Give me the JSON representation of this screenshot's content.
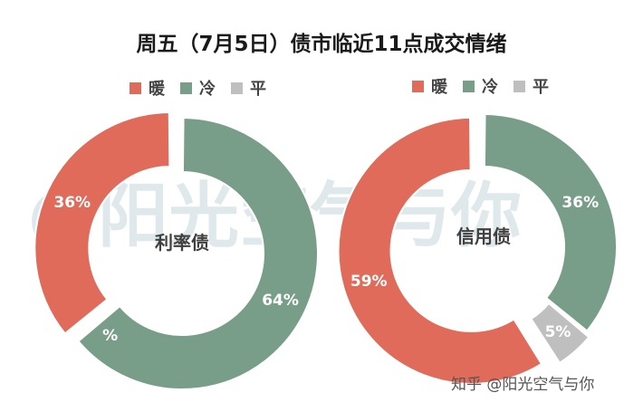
{
  "title": "周五（7月5日）债市临近11点成交情绪",
  "legend": [
    {
      "label": "暖",
      "color": "#e06b5a"
    },
    {
      "label": "冷",
      "color": "#789e89"
    },
    {
      "label": "平",
      "color": "#bfbfbf"
    }
  ],
  "watermark": {
    "big": "@阳光空气与你",
    "small": "知乎 @阳光空气与你"
  },
  "chart_data": [
    {
      "type": "pie",
      "center_label": "利率债",
      "slices": [
        {
          "label": "暖",
          "value": 36,
          "display": "36%",
          "color": "#e06b5a"
        },
        {
          "label": "冷",
          "value": 64,
          "display": "64%",
          "color": "#789e89"
        },
        {
          "label": "平",
          "value": 0,
          "display": "%",
          "color": "#bfbfbf"
        }
      ]
    },
    {
      "type": "pie",
      "center_label": "信用债",
      "slices": [
        {
          "label": "暖",
          "value": 59,
          "display": "59%",
          "color": "#e06b5a"
        },
        {
          "label": "冷",
          "value": 36,
          "display": "36%",
          "color": "#789e89"
        },
        {
          "label": "平",
          "value": 5,
          "display": "5%",
          "color": "#bfbfbf"
        }
      ]
    }
  ]
}
